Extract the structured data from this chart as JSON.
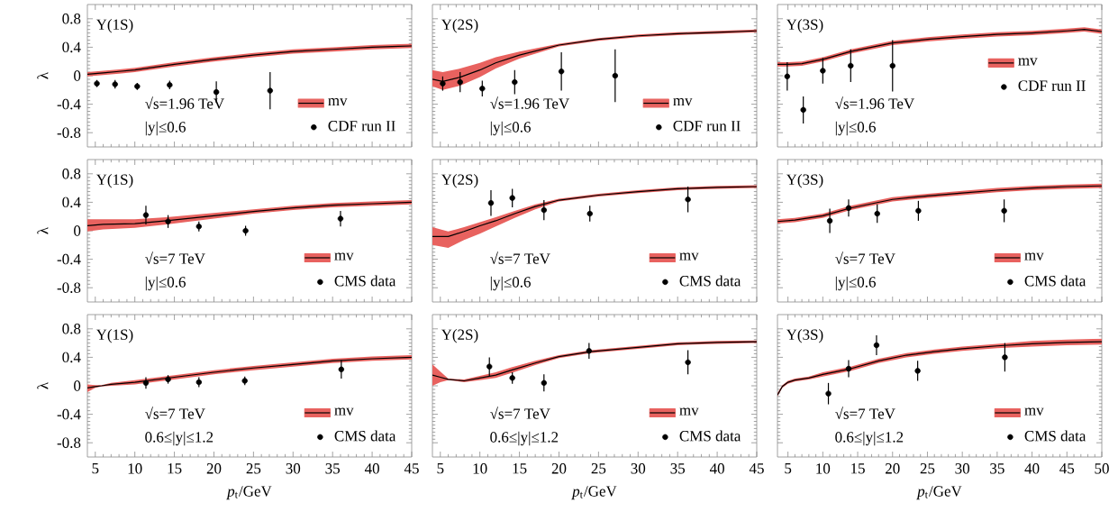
{
  "chart_data": [
    {
      "type": "line",
      "annotations": [
        "Υ(1S)",
        "√s=1.96 TeV",
        "|y|≤0.6"
      ],
      "ylabel": "λ",
      "xlim": [
        4,
        45
      ],
      "ylim": [
        -1,
        1
      ],
      "xticks": [
        5,
        10,
        15,
        20,
        25,
        30,
        35,
        40,
        45
      ],
      "yticks": [
        -0.8,
        -0.4,
        0,
        0.4,
        0.8
      ],
      "tick_labels": "y",
      "legend": "bottom right",
      "series": [
        {
          "name": "mv",
          "color": "#000000",
          "line_style": "solid",
          "marker": "none",
          "x": [
            4,
            6,
            8,
            10,
            15,
            20,
            25,
            30,
            35,
            40,
            45
          ],
          "values": [
            0.02,
            0.04,
            0.06,
            0.08,
            0.16,
            0.23,
            0.29,
            0.34,
            0.37,
            0.4,
            0.42
          ],
          "lower": [
            -0.01,
            0.01,
            0.03,
            0.05,
            0.13,
            0.2,
            0.26,
            0.31,
            0.34,
            0.37,
            0.39
          ],
          "upper": [
            0.05,
            0.07,
            0.09,
            0.11,
            0.19,
            0.26,
            0.32,
            0.37,
            0.4,
            0.43,
            0.45
          ]
        },
        {
          "name": "CDF run II",
          "type": "scatter",
          "marker": "circle",
          "color": "#000000",
          "x": [
            5.2,
            7.5,
            10.3,
            14.4,
            20.3,
            27.1
          ],
          "values": [
            -0.11,
            -0.12,
            -0.15,
            -0.13,
            -0.23,
            -0.21
          ],
          "errors": [
            0.05,
            0.06,
            0.05,
            0.06,
            0.15,
            0.26
          ]
        }
      ]
    },
    {
      "type": "line",
      "annotations": [
        "Υ(2S)",
        "√s=1.96 TeV",
        "|y|≤0.6"
      ],
      "xlim": [
        4,
        45
      ],
      "ylim": [
        -1,
        1
      ],
      "xticks": [
        5,
        10,
        15,
        20,
        25,
        30,
        35,
        40,
        45
      ],
      "yticks": [
        -0.8,
        -0.4,
        0,
        0.4,
        0.8
      ],
      "tick_labels": false,
      "legend": "bottom right",
      "series": [
        {
          "name": "mv",
          "color": "#000000",
          "line_style": "solid",
          "marker": "none",
          "x": [
            4,
            5.3,
            7.5,
            10,
            12,
            15,
            20,
            25,
            30,
            35,
            40,
            45
          ],
          "values": [
            -0.05,
            -0.08,
            -0.02,
            0.08,
            0.18,
            0.29,
            0.43,
            0.51,
            0.56,
            0.59,
            0.61,
            0.63
          ],
          "lower": [
            -0.15,
            -0.2,
            -0.14,
            -0.02,
            0.1,
            0.24,
            0.41,
            0.49,
            0.54,
            0.57,
            0.59,
            0.61
          ],
          "upper": [
            0.08,
            0.05,
            0.1,
            0.18,
            0.26,
            0.34,
            0.45,
            0.53,
            0.58,
            0.61,
            0.63,
            0.65
          ]
        },
        {
          "name": "CDF run II",
          "type": "scatter",
          "marker": "circle",
          "color": "#000000",
          "x": [
            5.3,
            7.5,
            10.3,
            14.4,
            20.3,
            27.1
          ],
          "values": [
            -0.11,
            -0.09,
            -0.18,
            -0.09,
            0.06,
            0.0
          ],
          "errors": [
            0.1,
            0.14,
            0.11,
            0.17,
            0.27,
            0.37
          ]
        }
      ]
    },
    {
      "type": "line",
      "annotations": [
        "Υ(3S)",
        "√s=1.96 TeV",
        "|y|≤0.6"
      ],
      "xlim": [
        3.5,
        50
      ],
      "ylim": [
        -1,
        1
      ],
      "xticks": [
        5,
        10,
        15,
        20,
        25,
        30,
        35,
        40,
        45,
        50
      ],
      "yticks": [
        -0.8,
        -0.4,
        0,
        0.4,
        0.8
      ],
      "tick_labels": false,
      "legend": "right",
      "series": [
        {
          "name": "mv",
          "color": "#000000",
          "line_style": "solid",
          "marker": "none",
          "x": [
            3.5,
            5,
            7,
            10,
            14,
            20,
            25,
            30,
            35,
            40,
            45,
            47.5,
            50
          ],
          "values": [
            0.16,
            0.16,
            0.17,
            0.23,
            0.34,
            0.46,
            0.51,
            0.55,
            0.58,
            0.6,
            0.63,
            0.65,
            0.62
          ],
          "lower": [
            0.13,
            0.13,
            0.14,
            0.2,
            0.31,
            0.43,
            0.48,
            0.52,
            0.55,
            0.57,
            0.6,
            0.62,
            0.59
          ],
          "upper": [
            0.19,
            0.19,
            0.2,
            0.26,
            0.37,
            0.49,
            0.54,
            0.58,
            0.61,
            0.63,
            0.66,
            0.68,
            0.65
          ]
        },
        {
          "name": "CDF run II",
          "type": "scatter",
          "marker": "circle",
          "color": "#000000",
          "x": [
            4.9,
            7.2,
            10.0,
            14.0,
            20.0
          ],
          "values": [
            -0.01,
            -0.48,
            0.07,
            0.14,
            0.14
          ],
          "errors": [
            0.2,
            0.19,
            0.18,
            0.23,
            0.36
          ]
        }
      ]
    },
    {
      "type": "line",
      "annotations": [
        "Υ(1S)",
        "√s=7 TeV",
        "|y|≤0.6"
      ],
      "ylabel": "λ",
      "xlim": [
        4,
        45
      ],
      "ylim": [
        -1,
        1
      ],
      "xticks": [
        5,
        10,
        15,
        20,
        25,
        30,
        35,
        40,
        45
      ],
      "yticks": [
        -0.8,
        -0.4,
        0,
        0.4,
        0.8
      ],
      "tick_labels": "y",
      "legend": "bottom right",
      "series": [
        {
          "name": "mv",
          "color": "#000000",
          "line_style": "solid",
          "marker": "none",
          "x": [
            4,
            6,
            10,
            14,
            20,
            25,
            30,
            35,
            40,
            45
          ],
          "values": [
            0.07,
            0.09,
            0.1,
            0.14,
            0.21,
            0.27,
            0.32,
            0.36,
            0.38,
            0.4
          ],
          "lower": [
            -0.01,
            0.02,
            0.04,
            0.09,
            0.17,
            0.24,
            0.29,
            0.33,
            0.35,
            0.37
          ],
          "upper": [
            0.16,
            0.16,
            0.16,
            0.19,
            0.25,
            0.3,
            0.35,
            0.39,
            0.41,
            0.43
          ]
        },
        {
          "name": "CMS data",
          "type": "scatter",
          "marker": "circle",
          "color": "#000000",
          "x": [
            11.4,
            14.2,
            18.1,
            24.0,
            36.0
          ],
          "values": [
            0.22,
            0.13,
            0.06,
            0.0,
            0.17
          ],
          "errors": [
            0.13,
            0.09,
            0.07,
            0.07,
            0.11
          ]
        }
      ]
    },
    {
      "type": "line",
      "annotations": [
        "Υ(2S)",
        "√s=7 TeV",
        "|y|≤0.6"
      ],
      "xlim": [
        4,
        45
      ],
      "ylim": [
        -1,
        1
      ],
      "xticks": [
        5,
        10,
        15,
        20,
        25,
        30,
        35,
        40,
        45
      ],
      "yticks": [
        -0.8,
        -0.4,
        0,
        0.4,
        0.8
      ],
      "tick_labels": false,
      "legend": "bottom right",
      "series": [
        {
          "name": "mv",
          "color": "#000000",
          "line_style": "solid",
          "marker": "none",
          "x": [
            4,
            6,
            8,
            10,
            12,
            14.4,
            17,
            20,
            25,
            30,
            35,
            40,
            45
          ],
          "values": [
            -0.08,
            -0.08,
            -0.01,
            0.07,
            0.14,
            0.24,
            0.34,
            0.43,
            0.5,
            0.55,
            0.59,
            0.61,
            0.62
          ],
          "lower": [
            -0.2,
            -0.24,
            -0.13,
            -0.04,
            0.06,
            0.18,
            0.3,
            0.41,
            0.48,
            0.53,
            0.57,
            0.59,
            0.6
          ],
          "upper": [
            0.05,
            -0.01,
            0.05,
            0.12,
            0.19,
            0.28,
            0.37,
            0.45,
            0.52,
            0.57,
            0.61,
            0.63,
            0.64
          ]
        },
        {
          "name": "CMS data",
          "type": "scatter",
          "marker": "circle",
          "color": "#000000",
          "x": [
            11.4,
            14.1,
            18.1,
            23.9,
            36.3
          ],
          "values": [
            0.39,
            0.46,
            0.29,
            0.24,
            0.44
          ],
          "errors": [
            0.18,
            0.13,
            0.14,
            0.11,
            0.18
          ]
        }
      ]
    },
    {
      "type": "line",
      "annotations": [
        "Υ(3S)",
        "√s=7 TeV",
        "|y|≤0.6"
      ],
      "xlim": [
        3.5,
        50
      ],
      "ylim": [
        -1,
        1
      ],
      "xticks": [
        5,
        10,
        15,
        20,
        25,
        30,
        35,
        40,
        45,
        50
      ],
      "yticks": [
        -0.8,
        -0.4,
        0,
        0.4,
        0.8
      ],
      "tick_labels": false,
      "legend": "bottom right",
      "series": [
        {
          "name": "mv",
          "color": "#000000",
          "line_style": "solid",
          "marker": "none",
          "x": [
            3.5,
            6,
            10,
            14,
            20,
            25,
            30,
            35,
            40,
            45,
            50
          ],
          "values": [
            0.13,
            0.15,
            0.21,
            0.32,
            0.44,
            0.49,
            0.53,
            0.57,
            0.6,
            0.62,
            0.63
          ],
          "lower": [
            0.1,
            0.12,
            0.18,
            0.29,
            0.41,
            0.46,
            0.5,
            0.54,
            0.57,
            0.59,
            0.6
          ],
          "upper": [
            0.16,
            0.18,
            0.24,
            0.35,
            0.47,
            0.52,
            0.56,
            0.6,
            0.63,
            0.65,
            0.66
          ]
        },
        {
          "name": "CMS data",
          "type": "scatter",
          "marker": "circle",
          "color": "#000000",
          "x": [
            11.0,
            13.7,
            17.8,
            23.7,
            36.0
          ],
          "values": [
            0.14,
            0.32,
            0.24,
            0.28,
            0.28
          ],
          "errors": [
            0.17,
            0.12,
            0.13,
            0.14,
            0.16
          ]
        }
      ]
    },
    {
      "type": "line",
      "annotations": [
        "Υ(1S)",
        "√s=7 TeV",
        "0.6≤|y|≤1.2"
      ],
      "xlabel": "*p*$_{t}$/GeV",
      "ylabel": "λ",
      "xlim": [
        4,
        45
      ],
      "ylim": [
        -1,
        1
      ],
      "xticks": [
        5,
        10,
        15,
        20,
        25,
        30,
        35,
        40,
        45
      ],
      "yticks": [
        -0.8,
        -0.4,
        0,
        0.4,
        0.8
      ],
      "legend": "bottom right",
      "series": [
        {
          "name": "mv",
          "color": "#000000",
          "line_style": "solid",
          "marker": "none",
          "x": [
            4,
            5,
            5.8,
            7,
            10,
            15,
            20,
            25,
            30,
            35,
            40,
            45
          ],
          "values": [
            -0.03,
            -0.01,
            0.0,
            0.02,
            0.05,
            0.12,
            0.19,
            0.25,
            0.3,
            0.35,
            0.38,
            0.4
          ],
          "lower": [
            -0.09,
            -0.03,
            -0.01,
            0.0,
            0.02,
            0.09,
            0.16,
            0.22,
            0.27,
            0.32,
            0.35,
            0.37
          ],
          "upper": [
            0.02,
            0.01,
            0.01,
            0.04,
            0.08,
            0.15,
            0.22,
            0.28,
            0.33,
            0.38,
            0.41,
            0.43
          ]
        },
        {
          "name": "CMS data",
          "type": "scatter",
          "marker": "circle",
          "color": "#000000",
          "x": [
            11.4,
            14.2,
            18.1,
            23.9,
            36.1
          ],
          "values": [
            0.04,
            0.09,
            0.05,
            0.07,
            0.23
          ],
          "errors": [
            0.08,
            0.06,
            0.07,
            0.06,
            0.13
          ]
        }
      ]
    },
    {
      "type": "line",
      "annotations": [
        "Υ(2S)",
        "√s=7 TeV",
        "0.6≤|y|≤1.2"
      ],
      "xlabel": "*p*$_{t}$/GeV",
      "xlim": [
        4,
        45
      ],
      "ylim": [
        -1,
        1
      ],
      "xticks": [
        5,
        10,
        15,
        20,
        25,
        30,
        35,
        40,
        45
      ],
      "yticks": [
        -0.8,
        -0.4,
        0,
        0.4,
        0.8
      ],
      "tick_labels": "x",
      "legend": "bottom right",
      "series": [
        {
          "name": "mv",
          "color": "#000000",
          "line_style": "solid",
          "marker": "none",
          "x": [
            4,
            5,
            6,
            8,
            10,
            12,
            14,
            17,
            20,
            24,
            30,
            35,
            40,
            45
          ],
          "values": [
            0.15,
            0.12,
            0.09,
            0.07,
            0.11,
            0.15,
            0.22,
            0.32,
            0.41,
            0.48,
            0.54,
            0.59,
            0.61,
            0.62
          ],
          "lower": [
            0.0,
            0.05,
            0.08,
            0.05,
            0.08,
            0.11,
            0.18,
            0.29,
            0.39,
            0.46,
            0.52,
            0.57,
            0.59,
            0.6
          ],
          "upper": [
            0.3,
            0.2,
            0.1,
            0.09,
            0.14,
            0.19,
            0.26,
            0.35,
            0.43,
            0.5,
            0.56,
            0.61,
            0.63,
            0.64
          ]
        },
        {
          "name": "CMS data",
          "type": "scatter",
          "marker": "circle",
          "color": "#000000",
          "x": [
            11.2,
            14.1,
            18.1,
            23.8,
            36.3
          ],
          "values": [
            0.27,
            0.11,
            0.04,
            0.49,
            0.33
          ],
          "errors": [
            0.13,
            0.08,
            0.12,
            0.11,
            0.17
          ]
        }
      ]
    },
    {
      "type": "line",
      "annotations": [
        "Υ(3S)",
        "√s=7 TeV",
        "0.6≤|y|≤1.2"
      ],
      "xlabel": "*p*$_{t}$/GeV",
      "xlim": [
        3.5,
        50
      ],
      "ylim": [
        -1,
        1
      ],
      "xticks": [
        5,
        10,
        15,
        20,
        25,
        30,
        35,
        40,
        45,
        50
      ],
      "yticks": [
        -0.8,
        -0.4,
        0,
        0.4,
        0.8
      ],
      "tick_labels": "x",
      "legend": "bottom right",
      "series": [
        {
          "name": "mv",
          "color": "#000000",
          "line_style": "solid",
          "marker": "none",
          "x": [
            3.5,
            4.2,
            5,
            6,
            8,
            10,
            14,
            18,
            22,
            26,
            30,
            35,
            40,
            45,
            50
          ],
          "values": [
            -0.13,
            -0.01,
            0.05,
            0.08,
            0.11,
            0.16,
            0.24,
            0.35,
            0.43,
            0.48,
            0.52,
            0.56,
            0.59,
            0.61,
            0.62
          ],
          "lower": [
            -0.15,
            -0.03,
            0.03,
            0.06,
            0.09,
            0.13,
            0.21,
            0.32,
            0.4,
            0.45,
            0.49,
            0.53,
            0.55,
            0.57,
            0.58
          ],
          "upper": [
            -0.1,
            0.01,
            0.07,
            0.1,
            0.13,
            0.19,
            0.27,
            0.38,
            0.46,
            0.51,
            0.55,
            0.59,
            0.63,
            0.65,
            0.66
          ]
        },
        {
          "name": "CMS data",
          "type": "scatter",
          "marker": "circle",
          "color": "#000000",
          "x": [
            10.8,
            13.7,
            17.7,
            23.6,
            36.1
          ],
          "values": [
            -0.11,
            0.24,
            0.57,
            0.21,
            0.4
          ],
          "errors": [
            0.15,
            0.12,
            0.14,
            0.14,
            0.2
          ]
        }
      ]
    }
  ]
}
